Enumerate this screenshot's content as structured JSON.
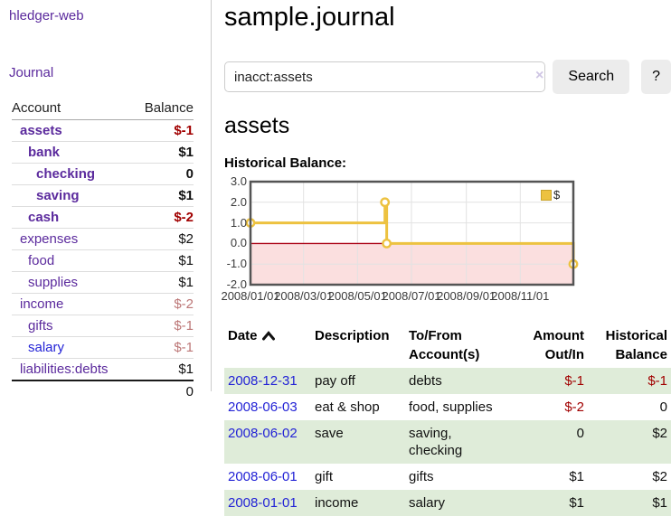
{
  "app": {
    "brand": "hledger-web",
    "nav": {
      "journal": "Journal"
    }
  },
  "sidebar": {
    "header": {
      "account": "Account",
      "balance": "Balance"
    },
    "accounts": [
      {
        "name": "assets",
        "depth": 1,
        "balance": "$-1",
        "bold": true,
        "amount_style": "neg-strong"
      },
      {
        "name": "bank",
        "depth": 2,
        "balance": "$1",
        "bold": true,
        "amount_style": "normal"
      },
      {
        "name": "checking",
        "depth": 3,
        "balance": "0",
        "bold": true,
        "amount_style": "normal"
      },
      {
        "name": "saving",
        "depth": 3,
        "balance": "$1",
        "bold": true,
        "amount_style": "normal"
      },
      {
        "name": "cash",
        "depth": 2,
        "balance": "$-2",
        "bold": true,
        "amount_style": "neg-strong"
      },
      {
        "name": "expenses",
        "depth": 1,
        "balance": "$2",
        "bold": false,
        "amount_style": "normal"
      },
      {
        "name": "food",
        "depth": 2,
        "balance": "$1",
        "bold": false,
        "amount_style": "normal"
      },
      {
        "name": "supplies",
        "depth": 2,
        "balance": "$1",
        "bold": false,
        "amount_style": "normal"
      },
      {
        "name": "income",
        "depth": 1,
        "balance": "$-2",
        "bold": false,
        "amount_style": "neg-muted"
      },
      {
        "name": "gifts",
        "depth": 2,
        "balance": "$-1",
        "bold": false,
        "amount_style": "neg-muted"
      },
      {
        "name": "salary",
        "depth": 2,
        "balance": "$-1",
        "bold": false,
        "amount_style": "neg-muted",
        "link_color": "blue"
      },
      {
        "name": "liabilities:debts",
        "depth": 1,
        "balance": "$1",
        "bold": false,
        "amount_style": "normal"
      }
    ],
    "total": "0"
  },
  "main": {
    "title": "sample.journal",
    "search": {
      "value": "inacct:assets",
      "clear_label": "×",
      "search_button": "Search",
      "help_button": "?"
    },
    "account_heading": "assets",
    "chart_heading": "Historical Balance:"
  },
  "chart_data": {
    "type": "line",
    "line_style": "steps",
    "title": "Historical Balance:",
    "x_start": "2008-01-01",
    "x_end": "2008-12-31",
    "ylim": [
      -2,
      3
    ],
    "y_ticks": [
      "3.0",
      "2.0",
      "1.0",
      "0.0",
      "-1.0",
      "-2.0"
    ],
    "x_ticks": [
      "2008/01/01",
      "2008/03/01",
      "2008/05/01",
      "2008/07/01",
      "2008/09/01",
      "2008/11/01"
    ],
    "grid": true,
    "legend": {
      "position": "top-right",
      "entries": [
        {
          "label": "$",
          "color": "#EDC240"
        }
      ]
    },
    "series": [
      {
        "name": "$",
        "color": "#EDC240",
        "points": [
          {
            "date": "2008-01-01",
            "value": 1
          },
          {
            "date": "2008-06-01",
            "value": 2
          },
          {
            "date": "2008-06-03",
            "value": 0
          },
          {
            "date": "2008-12-31",
            "value": -1
          }
        ]
      }
    ],
    "negative_region_color": "#fbdfdf",
    "zero_line_color": "#aa0014",
    "gridline_color": "#e2e2e2",
    "border_color": "#545454"
  },
  "register": {
    "columns": [
      {
        "label": "Date",
        "sorted": "asc",
        "align": "left"
      },
      {
        "label": "Description",
        "align": "left"
      },
      {
        "label": "To/From Account(s)",
        "align": "left"
      },
      {
        "label": "Amount Out/In",
        "align": "right"
      },
      {
        "label": "Historical Balance",
        "align": "right"
      }
    ],
    "rows": [
      {
        "date": "2008-12-31",
        "description": "pay off",
        "accounts": "debts",
        "amount": "$-1",
        "amount_negative": true,
        "balance": "$-1",
        "balance_negative": true
      },
      {
        "date": "2008-06-03",
        "description": "eat & shop",
        "accounts": "food, supplies",
        "amount": "$-2",
        "amount_negative": true,
        "balance": "0",
        "balance_negative": false
      },
      {
        "date": "2008-06-02",
        "description": "save",
        "accounts": "saving, checking",
        "amount": "0",
        "amount_negative": false,
        "balance": "$2",
        "balance_negative": false
      },
      {
        "date": "2008-06-01",
        "description": "gift",
        "accounts": "gifts",
        "amount": "$1",
        "amount_negative": false,
        "balance": "$2",
        "balance_negative": false
      },
      {
        "date": "2008-01-01",
        "description": "income",
        "accounts": "salary",
        "amount": "$1",
        "amount_negative": false,
        "balance": "$1",
        "balance_negative": false
      }
    ]
  },
  "colors": {
    "link_purple": "#5b2a9d",
    "link_blue": "#2323d6",
    "negative_strong": "#a10000",
    "negative_muted": "#bc7676",
    "row_stripe_green": "#dfecd9",
    "series_gold": "#EDC240"
  }
}
